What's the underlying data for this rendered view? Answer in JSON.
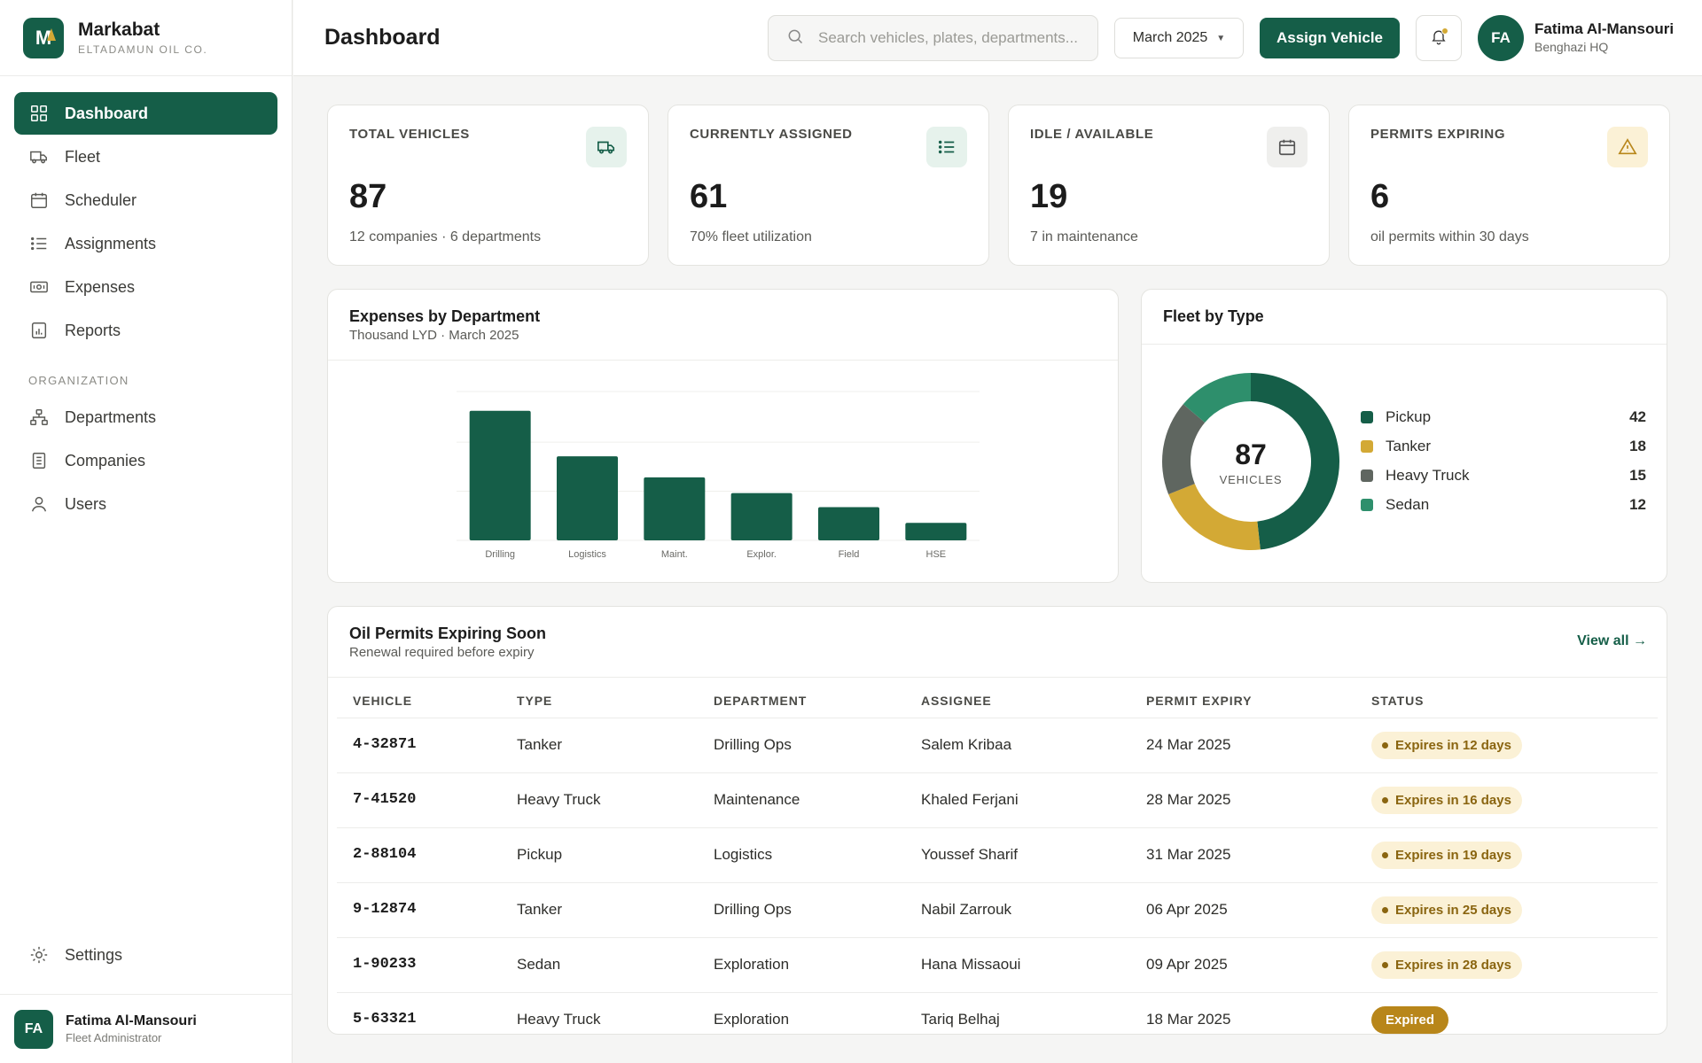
{
  "brand": {
    "name": "Markabat",
    "sub": "ELTADAMUN OIL CO.",
    "logo_letter": "M"
  },
  "nav": {
    "items": [
      {
        "label": "Dashboard",
        "icon": "grid-icon",
        "active": true
      },
      {
        "label": "Fleet",
        "icon": "truck-icon"
      },
      {
        "label": "Scheduler",
        "icon": "calendar-icon"
      },
      {
        "label": "Assignments",
        "icon": "list-icon"
      },
      {
        "label": "Expenses",
        "icon": "banknote-icon"
      },
      {
        "label": "Reports",
        "icon": "report-icon"
      }
    ],
    "section_label": "ORGANIZATION",
    "org_items": [
      {
        "label": "Departments",
        "icon": "org-chart-icon"
      },
      {
        "label": "Companies",
        "icon": "document-icon"
      },
      {
        "label": "Users",
        "icon": "user-icon"
      }
    ],
    "settings_label": "Settings"
  },
  "sidebar_user": {
    "initials": "FA",
    "name": "Fatima Al-Mansouri",
    "role": "Fleet Administrator"
  },
  "header": {
    "title": "Dashboard",
    "search_placeholder": "Search vehicles, plates, departments...",
    "month": "March 2025",
    "assign_label": "Assign Vehicle",
    "user_initials": "FA",
    "user_name": "Fatima Al-Mansouri",
    "user_location": "Benghazi HQ"
  },
  "kpis": [
    {
      "label": "TOTAL VEHICLES",
      "value": "87",
      "sub": "12 companies · 6 departments",
      "icon": "truck-icon"
    },
    {
      "label": "CURRENTLY ASSIGNED",
      "value": "61",
      "sub": "70% fleet utilization",
      "icon": "list-icon"
    },
    {
      "label": "IDLE / AVAILABLE",
      "value": "19",
      "sub": "7 in maintenance",
      "icon": "calendar-icon"
    },
    {
      "label": "PERMITS EXPIRING",
      "value": "6",
      "sub": "oil permits within 30 days",
      "icon": "warning-icon"
    }
  ],
  "expenses": {
    "title": "Expenses by Department",
    "subtitle": "Thousand LYD · March 2025"
  },
  "fleet_type": {
    "title": "Fleet by Type",
    "center_value": "87",
    "center_label": "VEHICLES"
  },
  "chart_data": [
    {
      "type": "bar",
      "title": "Expenses by Department",
      "subtitle": "Thousand LYD · March 2025",
      "categories": [
        "Drilling",
        "Logistics",
        "Maint.",
        "Explor.",
        "Field",
        "HSE"
      ],
      "values": [
        148,
        96,
        72,
        54,
        38,
        20
      ],
      "ylim": [
        0,
        170
      ],
      "grid": true,
      "color": "#155e48"
    },
    {
      "type": "pie",
      "title": "Fleet by Type",
      "labels": [
        "Pickup",
        "Tanker",
        "Heavy Truck",
        "Sedan"
      ],
      "values": [
        42,
        18,
        15,
        12
      ],
      "colors": [
        "#155e48",
        "#d3a935",
        "#5f6660",
        "#2e8f6c"
      ],
      "legend": "right"
    }
  ],
  "permits": {
    "title": "Oil Permits Expiring Soon",
    "subtitle": "Renewal required before expiry",
    "view_all": "View all →",
    "columns": [
      "VEHICLE",
      "TYPE",
      "DEPARTMENT",
      "ASSIGNEE",
      "PERMIT EXPIRY",
      "STATUS"
    ],
    "rows": [
      {
        "vehicle": "4-32871",
        "type": "Tanker",
        "department": "Drilling Ops",
        "assignee": "Salem Kribaa",
        "expiry": "24 Mar 2025",
        "status": "Expires in 12 days",
        "expired": false
      },
      {
        "vehicle": "7-41520",
        "type": "Heavy Truck",
        "department": "Maintenance",
        "assignee": "Khaled Ferjani",
        "expiry": "28 Mar 2025",
        "status": "Expires in 16 days",
        "expired": false
      },
      {
        "vehicle": "2-88104",
        "type": "Pickup",
        "department": "Logistics",
        "assignee": "Youssef Sharif",
        "expiry": "31 Mar 2025",
        "status": "Expires in 19 days",
        "expired": false
      },
      {
        "vehicle": "9-12874",
        "type": "Tanker",
        "department": "Drilling Ops",
        "assignee": "Nabil Zarrouk",
        "expiry": "06 Apr 2025",
        "status": "Expires in 25 days",
        "expired": false
      },
      {
        "vehicle": "1-90233",
        "type": "Sedan",
        "department": "Exploration",
        "assignee": "Hana Missaoui",
        "expiry": "09 Apr 2025",
        "status": "Expires in 28 days",
        "expired": false
      },
      {
        "vehicle": "5-63321",
        "type": "Heavy Truck",
        "department": "Exploration",
        "assignee": "Tariq Belhaj",
        "expiry": "18 Mar 2025",
        "status": "Expired",
        "expired": true
      }
    ]
  }
}
